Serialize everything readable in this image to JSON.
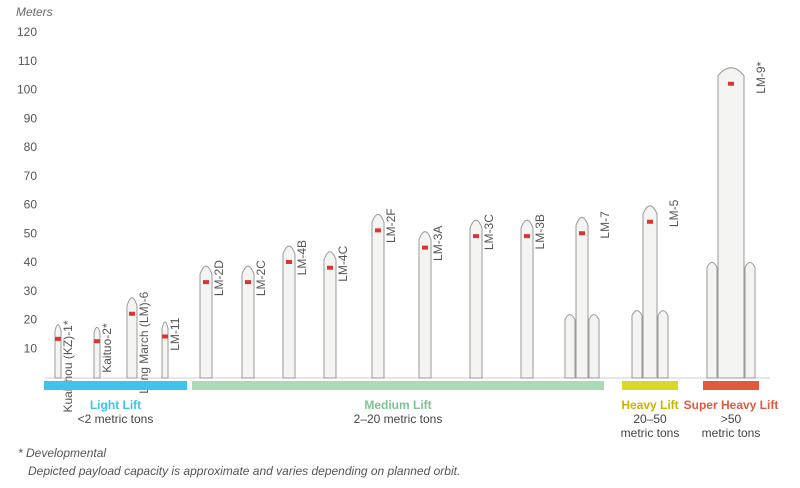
{
  "chart_data": {
    "type": "rocket-height",
    "y_label": "Meters",
    "categories": [
      "Kuaizhou (KZ)-1*",
      "Kaituo-2*",
      "Long March (LM)-6",
      "LM-11",
      "LM-2D",
      "LM-2C",
      "LM-4B",
      "LM-4C",
      "LM-2F",
      "LM-3A",
      "LM-3C",
      "LM-3B",
      "LM-7",
      "LM-5",
      "LM-9*"
    ],
    "values": [
      20,
      19,
      30,
      21,
      41,
      41,
      48,
      46,
      59,
      53,
      57,
      57,
      58,
      62,
      110
    ],
    "color": "#f4f4f2",
    "ylim": [
      0,
      120
    ],
    "yticks": [
      10,
      20,
      30,
      40,
      50,
      60,
      70,
      80,
      90,
      100,
      110,
      120
    ],
    "grid": false,
    "groups": [
      {
        "name": "Light Lift",
        "detail": [
          "<2 metric tons"
        ],
        "color": "#3ec4ea",
        "start": 0,
        "end": 3
      },
      {
        "name": "Medium Lift",
        "detail": [
          "2–20 metric tons"
        ],
        "color": "#a9dcb6",
        "start": 4,
        "end": 12
      },
      {
        "name": "Heavy Lift",
        "detail": [
          "20–50",
          "metric tons"
        ],
        "color": "#d9d62c",
        "start": 13,
        "end": 13
      },
      {
        "name": "Super Heavy Lift",
        "detail": [
          ">50",
          "metric tons"
        ],
        "color": "#e25a3d",
        "start": 14,
        "end": 14
      }
    ],
    "footnotes": [
      "* Developmental",
      "Depicted payload capacity is approximate and varies depending on planned orbit."
    ]
  }
}
